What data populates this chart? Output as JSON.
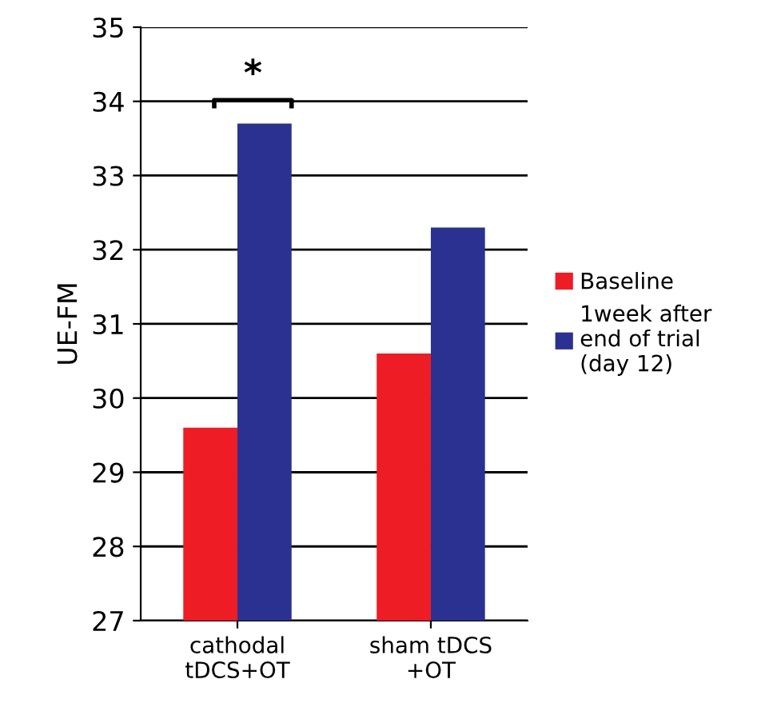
{
  "chart_data": {
    "type": "bar",
    "ylabel": "UE-FM",
    "categories": [
      "cathodal\ntDCS+OT",
      "sham tDCS\n+OT"
    ],
    "series": [
      {
        "name": "Baseline",
        "color": "#ee1c24",
        "values": [
          29.6,
          30.6
        ]
      },
      {
        "name": "1week after\nend of trial\n(day 12)",
        "color": "#2b3190",
        "values": [
          33.7,
          32.3
        ]
      }
    ],
    "ylim": [
      27,
      35
    ],
    "yticks": [
      27,
      28,
      29,
      30,
      31,
      32,
      33,
      34,
      35
    ],
    "grid": "y",
    "legend": "right",
    "annotations": [
      "*"
    ]
  }
}
